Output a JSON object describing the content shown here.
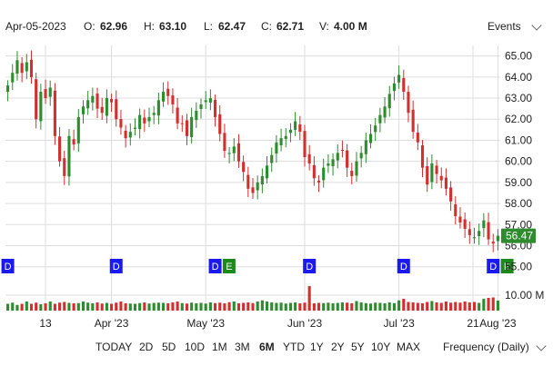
{
  "header": {
    "date": "Apr-05-2023",
    "open_label": "O:",
    "open": "62.96",
    "high_label": "H:",
    "high": "63.10",
    "low_label": "L:",
    "low": "62.47",
    "close_label": "C:",
    "close": "62.71",
    "volume_label": "V:",
    "volume": "4.00 M",
    "events_label": "Events"
  },
  "ranges": [
    "TODAY",
    "2D",
    "5D",
    "10D",
    "1M",
    "3M",
    "6M",
    "YTD",
    "1Y",
    "2Y",
    "5Y",
    "10Y",
    "MAX"
  ],
  "active_range": "6M",
  "frequency_label": "Frequency (Daily)",
  "colors": {
    "up": "#2e8b2e",
    "down": "#d32f2f",
    "event_d": "#1a1aee",
    "event_e": "#1a8a1a",
    "grid": "#dddddd"
  },
  "chart_data": {
    "type": "candlestick",
    "x_tick_labels": [
      "13",
      "Apr '23",
      "May '23",
      "Jun '23",
      "Jul '23",
      "Aug '23",
      "21"
    ],
    "y_tick_labels": [
      "65.00",
      "64.00",
      "63.00",
      "62.00",
      "61.00",
      "60.00",
      "59.00",
      "58.00",
      "57.00",
      "56.00",
      "55.00"
    ],
    "ylim": [
      54.6,
      65.5
    ],
    "last_price": "56.47",
    "volume_tick_label": "10.00 M",
    "closes": [
      63.6,
      64.2,
      64.8,
      64.2,
      64.7,
      64.0,
      62.0,
      63.3,
      63.0,
      63.5,
      61.2,
      60.0,
      59.3,
      61.2,
      60.8,
      62.1,
      62.6,
      62.9,
      63.1,
      62.5,
      62.3,
      63.0,
      62.8,
      62.0,
      61.6,
      61.1,
      61.4,
      61.6,
      62.2,
      61.8,
      62.1,
      62.3,
      62.9,
      63.3,
      63.1,
      62.7,
      61.8,
      61.8,
      61.2,
      62.1,
      62.4,
      62.7,
      62.9,
      63.0,
      62.1,
      61.3,
      60.5,
      60.4,
      60.7,
      60.0,
      59.5,
      58.7,
      58.5,
      59.0,
      59.3,
      59.8,
      60.3,
      60.9,
      61.1,
      61.2,
      61.5,
      61.9,
      61.4,
      60.2,
      59.9,
      59.2,
      59.0,
      59.7,
      59.9,
      60.1,
      60.4,
      60.5,
      59.7,
      59.3,
      60.0,
      60.4,
      61.0,
      61.3,
      61.7,
      62.2,
      62.6,
      63.2,
      63.7,
      64.1,
      63.3,
      62.3,
      61.4,
      60.9,
      59.7,
      58.9,
      59.9,
      59.4,
      59.1,
      58.7,
      58.1,
      57.4,
      57.1,
      56.8,
      56.5,
      56.4,
      56.7,
      57.2,
      56.3,
      56.1,
      56.47
    ],
    "volumes": [
      3,
      3.5,
      2.5,
      3,
      4,
      3,
      3.5,
      2.8,
      3.2,
      4,
      3,
      3.5,
      3.8,
      3.4,
      3.2,
      3.3,
      4,
      3.5,
      3.2,
      3.6,
      3.1,
      3.4,
      3,
      3.5,
      4,
      3.2,
      3.1,
      3,
      3.3,
      3.6,
      3.1,
      3.4,
      3.5,
      3.4,
      3.2,
      3.6,
      4,
      3.3,
      3.1,
      3.5,
      3.2,
      3.4,
      3.1,
      3.6,
      3.3,
      3.5,
      3.2,
      3.7,
      4,
      3.2,
      3.4,
      3.6,
      3.3,
      4,
      4.5,
      4,
      3.6,
      3.4,
      3.5,
      3.1,
      3.4,
      3.6,
      3.2,
      3.5,
      10.8,
      3.2,
      3.4,
      3.3,
      3.5,
      3.2,
      3.4,
      3.6,
      3.5,
      3.2,
      4.2,
      3.6,
      3.3,
      3.1,
      3.5,
      3.4,
      3.2,
      3.6,
      3.3,
      4.5,
      5.2,
      3.8,
      3.6,
      3.4,
      3.2,
      3.8,
      4.2,
      3.6,
      3.4,
      4,
      3.5,
      3.8,
      3.5,
      4,
      3.6,
      3.8,
      3.4,
      5.2,
      5.6,
      5.8,
      4.4
    ],
    "events": [
      {
        "label": "D",
        "type": "D",
        "index": 0
      },
      {
        "label": "D",
        "type": "D",
        "index": 23
      },
      {
        "label": "D",
        "type": "D",
        "index": 44
      },
      {
        "label": "E",
        "type": "E",
        "index": 46
      },
      {
        "label": "D",
        "type": "D",
        "index": 64
      },
      {
        "label": "D",
        "type": "D",
        "index": 84
      },
      {
        "label": "D",
        "type": "D",
        "index": 103
      },
      {
        "label": "E",
        "type": "E",
        "index": 105
      }
    ]
  }
}
